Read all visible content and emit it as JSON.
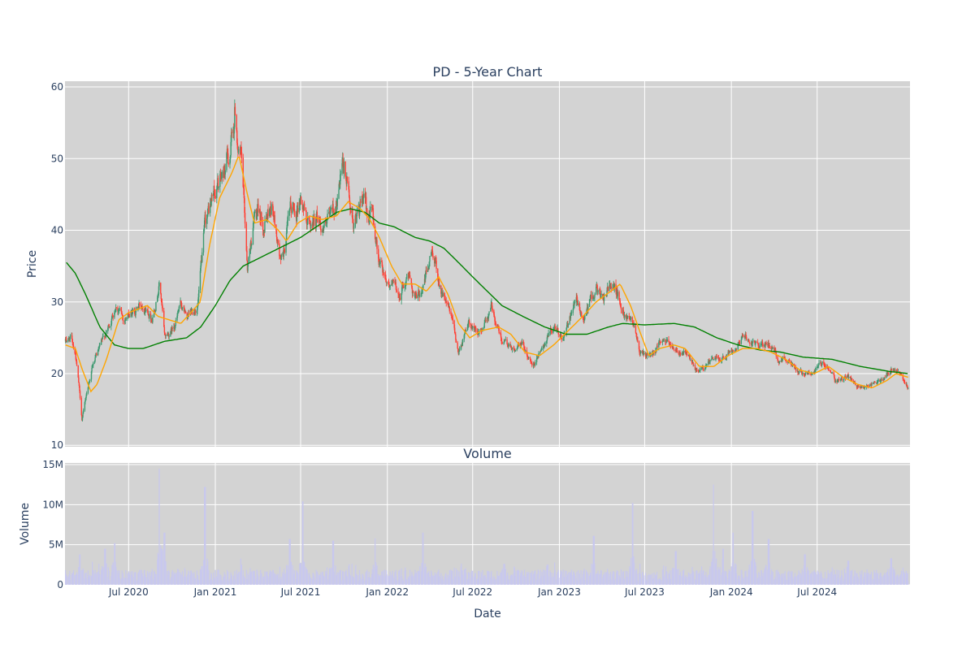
{
  "chart_data": {
    "type": "candlestick",
    "title": "PD - 5-Year Chart",
    "price_panel": {
      "ylabel": "Price",
      "yticks": [
        10,
        20,
        30,
        40,
        50,
        60
      ],
      "ylim": [
        9.8,
        60.8
      ],
      "grid": true,
      "increasing_color": "#3d9970",
      "decreasing_color": "#ff4136",
      "ma_short_color": "#ffa500",
      "ma_long_color": "#008000",
      "close_keypoints": [
        [
          "2020-02-18",
          24.5
        ],
        [
          "2020-03-01",
          25.0
        ],
        [
          "2020-03-10",
          23.0
        ],
        [
          "2020-03-18",
          18.0
        ],
        [
          "2020-03-24",
          13.5
        ],
        [
          "2020-04-02",
          17.0
        ],
        [
          "2020-04-15",
          21.0
        ],
        [
          "2020-05-01",
          23.5
        ],
        [
          "2020-05-20",
          26.5
        ],
        [
          "2020-06-05",
          30.0
        ],
        [
          "2020-06-20",
          27.5
        ],
        [
          "2020-07-10",
          28.5
        ],
        [
          "2020-08-01",
          30.0
        ],
        [
          "2020-08-20",
          28.0
        ],
        [
          "2020-09-05",
          33.0
        ],
        [
          "2020-09-15",
          25.0
        ],
        [
          "2020-10-01",
          26.0
        ],
        [
          "2020-10-20",
          29.5
        ],
        [
          "2020-11-05",
          27.5
        ],
        [
          "2020-11-25",
          30.0
        ],
        [
          "2020-12-10",
          40.0
        ],
        [
          "2020-12-28",
          45.0
        ],
        [
          "2021-01-15",
          47.0
        ],
        [
          "2021-02-05",
          52.0
        ],
        [
          "2021-02-12",
          57.0
        ],
        [
          "2021-02-26",
          48.0
        ],
        [
          "2021-03-10",
          35.0
        ],
        [
          "2021-03-25",
          42.0
        ],
        [
          "2021-04-15",
          41.0
        ],
        [
          "2021-05-01",
          44.0
        ],
        [
          "2021-05-20",
          35.0
        ],
        [
          "2021-06-10",
          42.0
        ],
        [
          "2021-06-30",
          45.0
        ],
        [
          "2021-07-20",
          40.5
        ],
        [
          "2021-08-05",
          42.0
        ],
        [
          "2021-08-25",
          40.0
        ],
        [
          "2021-09-15",
          44.0
        ],
        [
          "2021-10-01",
          48.0
        ],
        [
          "2021-10-20",
          42.0
        ],
        [
          "2021-11-10",
          43.0
        ],
        [
          "2021-12-01",
          42.0
        ],
        [
          "2021-12-15",
          36.0
        ],
        [
          "2022-01-05",
          33.0
        ],
        [
          "2022-01-25",
          31.0
        ],
        [
          "2022-02-15",
          34.0
        ],
        [
          "2022-03-05",
          30.0
        ],
        [
          "2022-03-25",
          34.0
        ],
        [
          "2022-04-08",
          37.0
        ],
        [
          "2022-04-25",
          32.0
        ],
        [
          "2022-05-15",
          28.0
        ],
        [
          "2022-06-01",
          23.0
        ],
        [
          "2022-06-20",
          27.0
        ],
        [
          "2022-07-15",
          25.5
        ],
        [
          "2022-08-10",
          29.0
        ],
        [
          "2022-09-01",
          25.0
        ],
        [
          "2022-09-25",
          23.0
        ],
        [
          "2022-10-15",
          24.0
        ],
        [
          "2022-11-05",
          21.0
        ],
        [
          "2022-11-25",
          24.0
        ],
        [
          "2022-12-15",
          26.0
        ],
        [
          "2023-01-10",
          25.0
        ],
        [
          "2023-02-05",
          30.0
        ],
        [
          "2023-02-20",
          27.5
        ],
        [
          "2023-03-20",
          32.0
        ],
        [
          "2023-04-05",
          30.0
        ],
        [
          "2023-04-25",
          33.5
        ],
        [
          "2023-05-15",
          29.0
        ],
        [
          "2023-06-10",
          27.5
        ],
        [
          "2023-06-20",
          23.0
        ],
        [
          "2023-07-10",
          22.0
        ],
        [
          "2023-08-01",
          24.5
        ],
        [
          "2023-08-25",
          24.0
        ],
        [
          "2023-09-25",
          23.0
        ],
        [
          "2023-10-20",
          20.0
        ],
        [
          "2023-11-15",
          21.5
        ],
        [
          "2023-12-15",
          22.5
        ],
        [
          "2024-01-10",
          24.0
        ],
        [
          "2024-01-25",
          25.5
        ],
        [
          "2024-02-20",
          24.0
        ],
        [
          "2024-03-20",
          24.0
        ],
        [
          "2024-04-10",
          22.0
        ],
        [
          "2024-05-01",
          22.0
        ],
        [
          "2024-05-20",
          20.5
        ],
        [
          "2024-06-15",
          20.0
        ],
        [
          "2024-07-05",
          21.0
        ],
        [
          "2024-07-20",
          21.5
        ],
        [
          "2024-08-10",
          19.0
        ],
        [
          "2024-09-05",
          19.5
        ],
        [
          "2024-09-25",
          18.0
        ],
        [
          "2024-10-25",
          18.5
        ],
        [
          "2024-11-15",
          19.0
        ],
        [
          "2024-12-05",
          20.5
        ],
        [
          "2024-12-20",
          20.0
        ],
        [
          "2025-01-05",
          18.5
        ],
        [
          "2025-01-10",
          18.0
        ]
      ],
      "ma_short_keypoints": [
        [
          "2020-02-18",
          24.0
        ],
        [
          "2020-03-10",
          23.5
        ],
        [
          "2020-03-25",
          20.5
        ],
        [
          "2020-04-12",
          17.5
        ],
        [
          "2020-04-25",
          18.5
        ],
        [
          "2020-05-15",
          22.0
        ],
        [
          "2020-06-10",
          27.5
        ],
        [
          "2020-07-01",
          28.5
        ],
        [
          "2020-08-10",
          29.5
        ],
        [
          "2020-09-01",
          28.0
        ],
        [
          "2020-09-25",
          27.5
        ],
        [
          "2020-10-20",
          27.0
        ],
        [
          "2020-11-10",
          28.5
        ],
        [
          "2020-11-30",
          30.0
        ],
        [
          "2020-12-20",
          38.0
        ],
        [
          "2021-01-10",
          44.5
        ],
        [
          "2021-02-05",
          48.0
        ],
        [
          "2021-02-20",
          50.5
        ],
        [
          "2021-03-10",
          45.0
        ],
        [
          "2021-03-25",
          41.0
        ],
        [
          "2021-04-20",
          41.5
        ],
        [
          "2021-05-15",
          40.0
        ],
        [
          "2021-06-01",
          38.5
        ],
        [
          "2021-06-25",
          41.0
        ],
        [
          "2021-07-20",
          42.0
        ],
        [
          "2021-08-15",
          41.5
        ],
        [
          "2021-09-15",
          42.0
        ],
        [
          "2021-10-10",
          44.0
        ],
        [
          "2021-11-05",
          43.0
        ],
        [
          "2021-11-25",
          41.5
        ],
        [
          "2021-12-15",
          39.0
        ],
        [
          "2022-01-10",
          35.0
        ],
        [
          "2022-02-01",
          32.5
        ],
        [
          "2022-03-01",
          32.5
        ],
        [
          "2022-03-25",
          31.5
        ],
        [
          "2022-04-20",
          33.5
        ],
        [
          "2022-05-10",
          31.0
        ],
        [
          "2022-06-01",
          27.0
        ],
        [
          "2022-06-25",
          25.0
        ],
        [
          "2022-07-20",
          26.0
        ],
        [
          "2022-08-25",
          26.5
        ],
        [
          "2022-09-20",
          25.5
        ],
        [
          "2022-10-20",
          23.0
        ],
        [
          "2022-11-20",
          22.5
        ],
        [
          "2022-12-20",
          24.0
        ],
        [
          "2023-01-20",
          26.0
        ],
        [
          "2023-02-20",
          28.0
        ],
        [
          "2023-03-20",
          30.0
        ],
        [
          "2023-04-20",
          31.5
        ],
        [
          "2023-05-10",
          32.5
        ],
        [
          "2023-06-01",
          29.5
        ],
        [
          "2023-06-20",
          26.0
        ],
        [
          "2023-07-10",
          22.5
        ],
        [
          "2023-08-01",
          23.5
        ],
        [
          "2023-09-01",
          24.0
        ],
        [
          "2023-09-25",
          23.5
        ],
        [
          "2023-10-25",
          21.0
        ],
        [
          "2023-11-25",
          21.0
        ],
        [
          "2023-12-25",
          22.5
        ],
        [
          "2024-01-25",
          23.5
        ],
        [
          "2024-02-25",
          23.5
        ],
        [
          "2024-03-25",
          23.0
        ],
        [
          "2024-04-25",
          22.0
        ],
        [
          "2024-05-25",
          20.5
        ],
        [
          "2024-06-25",
          20.0
        ],
        [
          "2024-07-25",
          21.0
        ],
        [
          "2024-08-25",
          19.5
        ],
        [
          "2024-09-25",
          18.5
        ],
        [
          "2024-10-25",
          18.0
        ],
        [
          "2024-11-25",
          19.0
        ],
        [
          "2024-12-15",
          20.0
        ],
        [
          "2025-01-10",
          19.5
        ]
      ],
      "ma_long_keypoints": [
        [
          "2020-02-20",
          35.5
        ],
        [
          "2020-03-10",
          34.0
        ],
        [
          "2020-04-01",
          31.0
        ],
        [
          "2020-05-01",
          26.5
        ],
        [
          "2020-06-01",
          24.0
        ],
        [
          "2020-07-01",
          23.5
        ],
        [
          "2020-08-01",
          23.5
        ],
        [
          "2020-09-15",
          24.5
        ],
        [
          "2020-11-01",
          25.0
        ],
        [
          "2020-12-01",
          26.5
        ],
        [
          "2021-01-01",
          29.5
        ],
        [
          "2021-02-01",
          33.0
        ],
        [
          "2021-03-01",
          35.0
        ],
        [
          "2021-05-01",
          37.0
        ],
        [
          "2021-07-01",
          39.0
        ],
        [
          "2021-08-15",
          41.0
        ],
        [
          "2021-09-15",
          42.5
        ],
        [
          "2021-10-15",
          43.0
        ],
        [
          "2021-11-15",
          42.5
        ],
        [
          "2021-12-15",
          41.0
        ],
        [
          "2022-01-15",
          40.5
        ],
        [
          "2022-03-01",
          39.0
        ],
        [
          "2022-04-01",
          38.5
        ],
        [
          "2022-05-01",
          37.5
        ],
        [
          "2022-06-01",
          35.5
        ],
        [
          "2022-07-01",
          33.5
        ],
        [
          "2022-08-01",
          31.5
        ],
        [
          "2022-09-01",
          29.5
        ],
        [
          "2022-10-15",
          28.0
        ],
        [
          "2022-12-01",
          26.5
        ],
        [
          "2023-01-15",
          25.5
        ],
        [
          "2023-03-01",
          25.5
        ],
        [
          "2023-04-15",
          26.5
        ],
        [
          "2023-05-15",
          27.0
        ],
        [
          "2023-07-01",
          26.8
        ],
        [
          "2023-09-01",
          27.0
        ],
        [
          "2023-10-15",
          26.5
        ],
        [
          "2023-12-01",
          25.0
        ],
        [
          "2024-01-15",
          24.0
        ],
        [
          "2024-03-01",
          23.3
        ],
        [
          "2024-04-15",
          23.0
        ],
        [
          "2024-06-01",
          22.3
        ],
        [
          "2024-08-01",
          22.0
        ],
        [
          "2024-10-01",
          21.0
        ],
        [
          "2024-12-01",
          20.3
        ],
        [
          "2025-01-10",
          20.0
        ]
      ]
    },
    "volume_panel": {
      "title": "Volume",
      "ylabel": "Volume",
      "yticks": [
        0,
        5000000,
        10000000,
        15000000
      ],
      "ytick_labels": [
        "0",
        "5M",
        "10M",
        "15M"
      ],
      "ylim": [
        0,
        15200000
      ],
      "bar_color": "#c8c8ee",
      "spikes": [
        [
          "2020-03-20",
          3800000
        ],
        [
          "2020-05-12",
          4500000
        ],
        [
          "2020-06-01",
          5200000
        ],
        [
          "2020-09-05",
          14500000
        ],
        [
          "2020-09-15",
          6500000
        ],
        [
          "2020-12-10",
          12200000
        ],
        [
          "2021-02-26",
          2500000
        ],
        [
          "2021-06-08",
          5700000
        ],
        [
          "2021-07-05",
          10400000
        ],
        [
          "2021-09-08",
          5500000
        ],
        [
          "2021-12-05",
          5800000
        ],
        [
          "2022-03-18",
          6500000
        ],
        [
          "2022-06-05",
          2300000
        ],
        [
          "2022-09-06",
          2600000
        ],
        [
          "2022-12-07",
          2500000
        ],
        [
          "2023-03-15",
          6100000
        ],
        [
          "2023-06-05",
          10200000
        ],
        [
          "2023-09-05",
          4200000
        ],
        [
          "2023-11-25",
          12500000
        ],
        [
          "2023-12-15",
          4500000
        ],
        [
          "2024-01-05",
          6500000
        ],
        [
          "2024-02-15",
          9200000
        ],
        [
          "2024-03-20",
          5700000
        ],
        [
          "2024-06-05",
          3800000
        ],
        [
          "2024-09-05",
          3000000
        ],
        [
          "2024-12-05",
          3300000
        ]
      ]
    },
    "x_axis": {
      "xlabel": "Date",
      "xlim": [
        "2020-02-17",
        "2025-01-14"
      ],
      "ticks": [
        "2020-07-01",
        "2021-01-01",
        "2021-07-01",
        "2022-01-01",
        "2022-07-01",
        "2023-01-01",
        "2023-07-01",
        "2024-01-01",
        "2024-07-01"
      ],
      "tick_labels": [
        "Jul 2020",
        "Jan 2021",
        "Jul 2021",
        "Jan 2022",
        "Jul 2022",
        "Jan 2023",
        "Jul 2023",
        "Jan 2024",
        "Jul 2024"
      ]
    },
    "plot_bg": "#d3d3d3",
    "grid_color": "#ffffff",
    "legend": "none"
  }
}
